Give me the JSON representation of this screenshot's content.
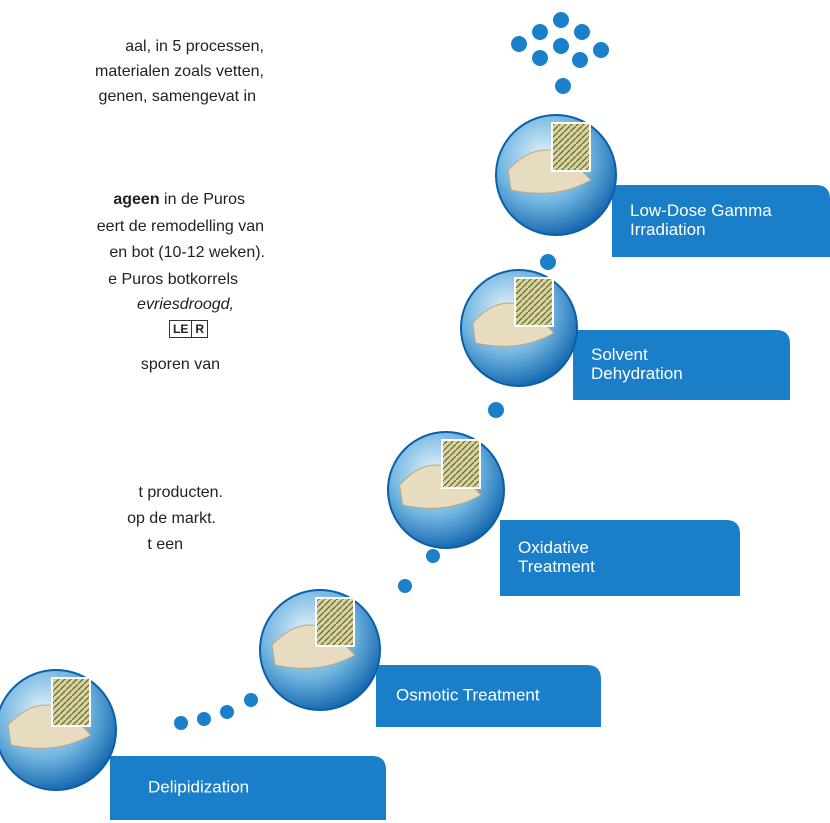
{
  "text": {
    "lines": [
      "aal, in 5 processen,",
      "materialen zoals vetten,",
      "genen, samengevat in",
      [
        "ageen",
        " in de Puros"
      ],
      "eert de remodelling van",
      "en bot (10-12 weken).",
      "e Puros botkorrels",
      "evriesdroogd,",
      [
        "LE",
        "R"
      ],
      "sporen van",
      "t producten.",
      "op de markt.",
      "t een"
    ]
  },
  "steps": [
    {
      "label": [
        "Low-Dose Gamma",
        "Irradiation"
      ]
    },
    {
      "label": [
        "Solvent",
        "Dehydration"
      ]
    },
    {
      "label": [
        "Oxidative",
        "Treatment"
      ]
    },
    {
      "label": [
        "Osmotic Treatment"
      ]
    },
    {
      "label": [
        "Delipidization"
      ]
    }
  ]
}
